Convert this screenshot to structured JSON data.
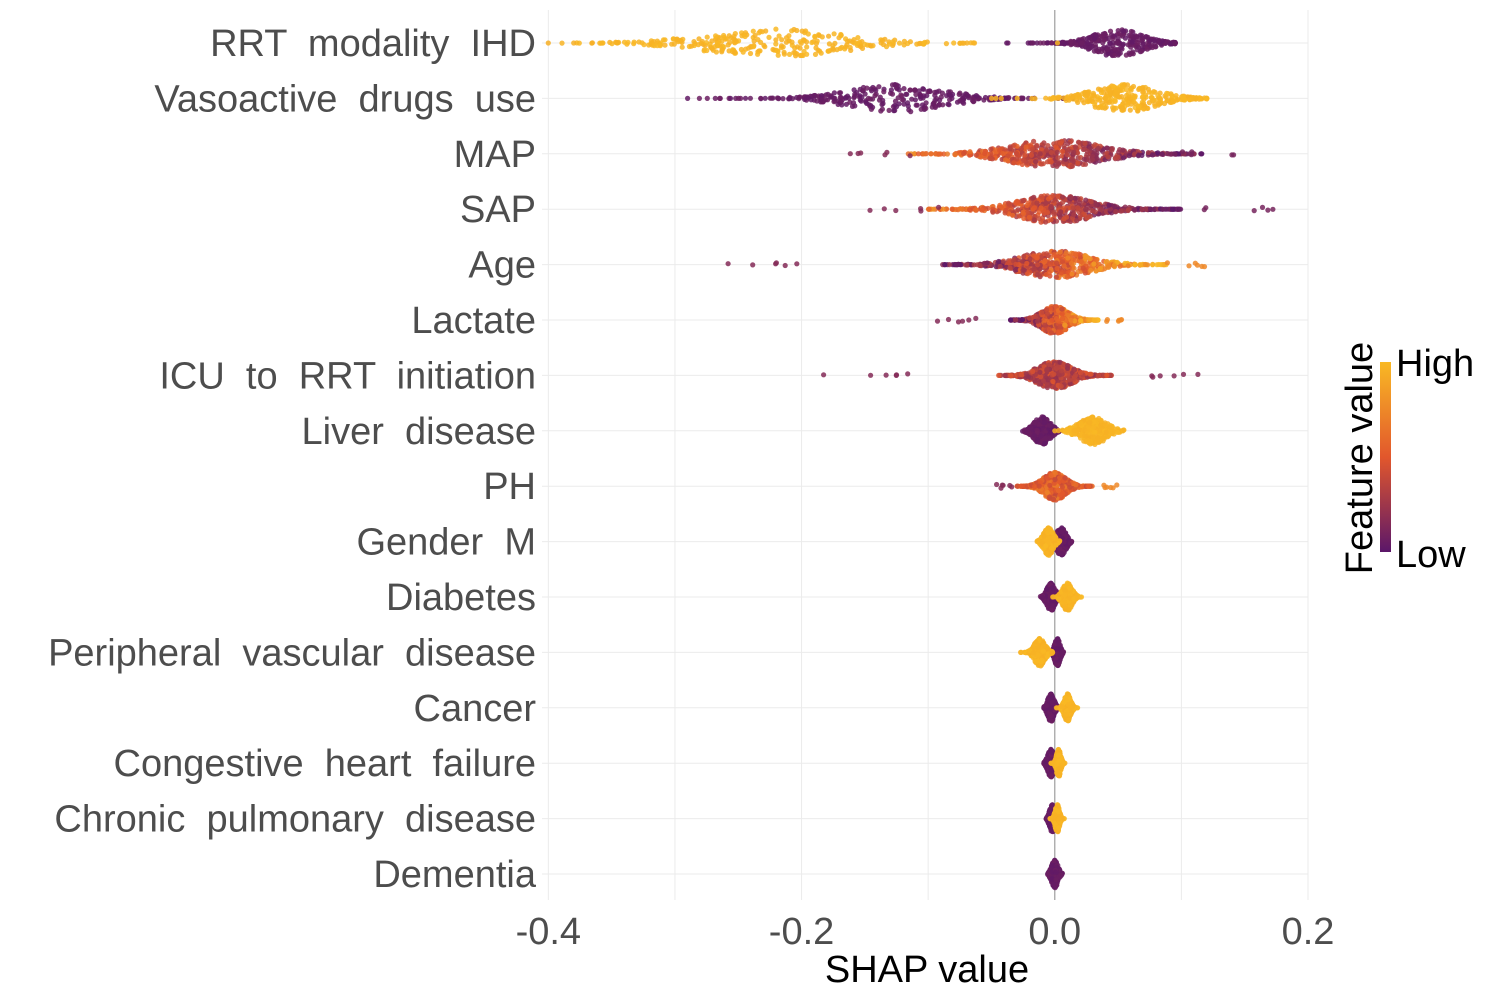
{
  "chart_data": {
    "type": "scatter",
    "subtype": "shap-beeswarm",
    "xlabel": "SHAP value",
    "xlim": [
      -0.405,
      0.2
    ],
    "x_ticks": [
      -0.4,
      -0.2,
      0.0,
      0.2
    ],
    "x_tick_labels": [
      "-0.4",
      "-0.2",
      "0.0",
      "0.2"
    ],
    "grid": true,
    "reference_line_x": 0.0,
    "legend": {
      "title": "Feature value",
      "high_label": "High",
      "low_label": "Low",
      "placement": "right",
      "high_color": "#F9B924",
      "mid_color": "#E2572C",
      "low_color": "#5B1769"
    },
    "features": [
      {
        "name": "RRT  modality  IHD",
        "range": [
          -0.4,
          0.095
        ],
        "low": {
          "center": 0.05,
          "spread": 0.045,
          "width": 0.035
        },
        "high": {
          "center": -0.22,
          "spread": 0.13,
          "width": 0.08
        }
      },
      {
        "name": "Vasoactive  drugs  use",
        "range": [
          -0.29,
          0.12
        ],
        "low": {
          "center": -0.125,
          "spread": 0.09,
          "width": 0.065
        },
        "high": {
          "center": 0.055,
          "spread": 0.06,
          "width": 0.035
        }
      },
      {
        "name": "MAP",
        "range": [
          -0.19,
          0.155
        ],
        "mixed": {
          "center": 0.0,
          "spread": 0.12
        },
        "slope": -1
      },
      {
        "name": "SAP",
        "range": [
          -0.15,
          0.18
        ],
        "mixed": {
          "center": 0.0,
          "spread": 0.1
        },
        "slope": -1
      },
      {
        "name": "Age",
        "range": [
          -0.26,
          0.125
        ],
        "mixed": {
          "center": 0.0,
          "spread": 0.09
        },
        "slope": 1
      },
      {
        "name": "Lactate",
        "range": [
          -0.1,
          0.06
        ],
        "mixed": {
          "center": 0.0,
          "spread": 0.035
        },
        "slope": 1
      },
      {
        "name": "ICU  to  RRT  initiation",
        "range": [
          -0.19,
          0.12
        ],
        "mixed": {
          "center": 0.0,
          "spread": 0.045
        },
        "slope": 0
      },
      {
        "name": "Liver  disease",
        "range": [
          -0.035,
          0.06
        ],
        "low": {
          "center": -0.01,
          "spread": 0.015,
          "width": 0.006
        },
        "high": {
          "center": 0.03,
          "spread": 0.025,
          "width": 0.01
        }
      },
      {
        "name": "PH",
        "range": [
          -0.055,
          0.055
        ],
        "mixed": {
          "center": 0.0,
          "spread": 0.03
        },
        "slope": 0.4
      },
      {
        "name": "Gender  M",
        "range": [
          -0.015,
          0.02
        ],
        "low": {
          "center": 0.005,
          "spread": 0.009,
          "width": 0.003
        },
        "high": {
          "center": -0.005,
          "spread": 0.009,
          "width": 0.003
        }
      },
      {
        "name": "Diabetes",
        "range": [
          -0.015,
          0.022
        ],
        "low": {
          "center": -0.003,
          "spread": 0.008,
          "width": 0.003
        },
        "high": {
          "center": 0.01,
          "spread": 0.009,
          "width": 0.004
        }
      },
      {
        "name": "Peripheral  vascular  disease",
        "range": [
          -0.028,
          0.01
        ],
        "low": {
          "center": 0.002,
          "spread": 0.005,
          "width": 0.002
        },
        "high": {
          "center": -0.012,
          "spread": 0.01,
          "width": 0.005
        }
      },
      {
        "name": "Cancer",
        "range": [
          -0.012,
          0.018
        ],
        "low": {
          "center": -0.003,
          "spread": 0.006,
          "width": 0.002
        },
        "high": {
          "center": 0.01,
          "spread": 0.006,
          "width": 0.003
        }
      },
      {
        "name": "Congestive  heart  failure",
        "range": [
          -0.012,
          0.008
        ],
        "low": {
          "center": -0.003,
          "spread": 0.006,
          "width": 0.002
        },
        "high": {
          "center": 0.003,
          "spread": 0.004,
          "width": 0.002
        }
      },
      {
        "name": "Chronic  pulmonary  disease",
        "range": [
          -0.012,
          0.008
        ],
        "low": {
          "center": -0.002,
          "spread": 0.005,
          "width": 0.002
        },
        "high": {
          "center": 0.002,
          "spread": 0.004,
          "width": 0.002
        }
      },
      {
        "name": "Dementia",
        "range": [
          -0.012,
          0.008
        ],
        "low": {
          "center": 0.0,
          "spread": 0.006,
          "width": 0.002
        }
      }
    ]
  }
}
